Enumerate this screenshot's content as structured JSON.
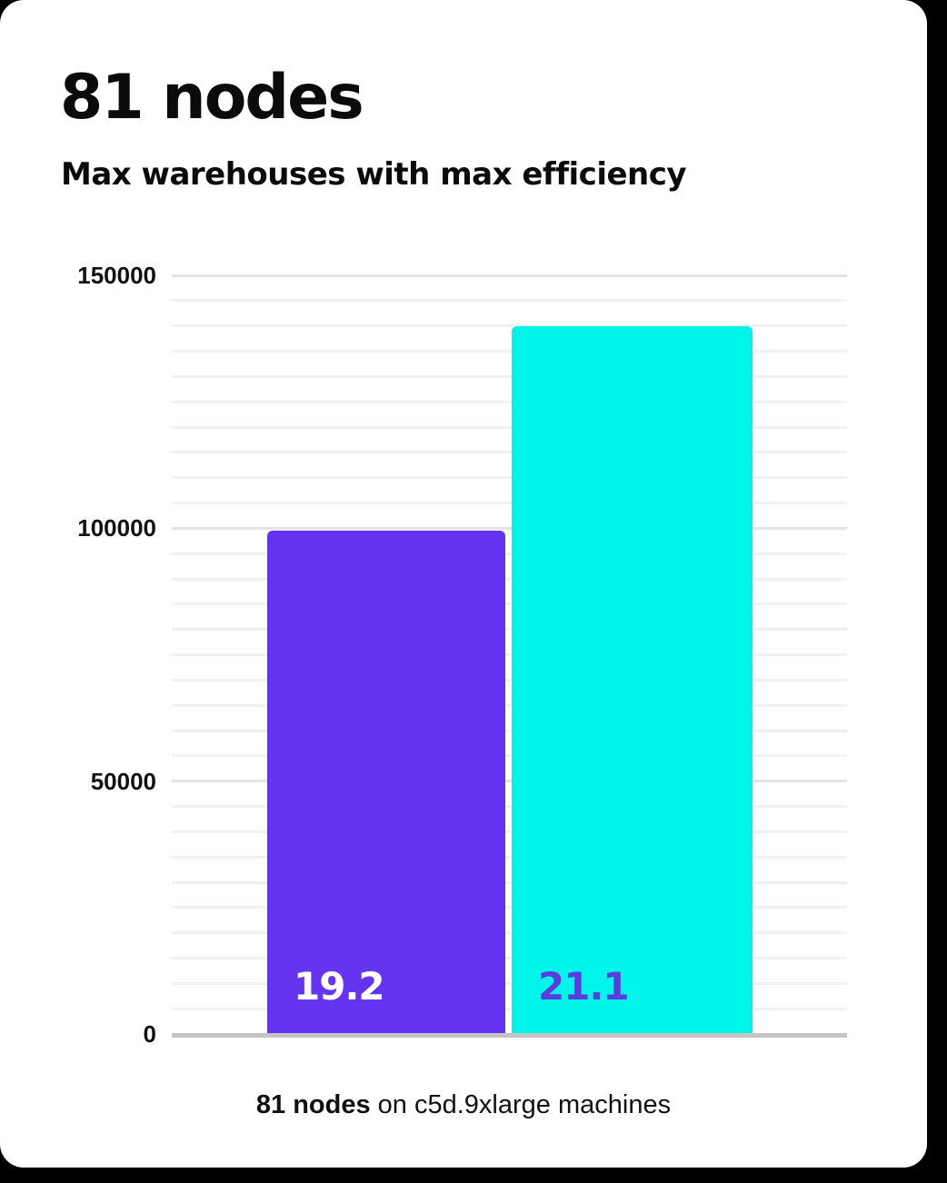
{
  "page": {
    "background_color": "#000000",
    "card_color": "#ffffff"
  },
  "header": {
    "title": "81 nodes",
    "subtitle": "Max warehouses with max efficiency"
  },
  "chart_data": {
    "type": "bar",
    "title": "81 nodes",
    "subtitle": "Max warehouses with max efficiency",
    "xlabel": "",
    "ylabel": "",
    "ylim": [
      0,
      150000
    ],
    "ytick_values": [
      0,
      50000,
      100000,
      150000
    ],
    "ytick_labels": [
      "0",
      "50000",
      "100000",
      "150000"
    ],
    "grid": {
      "enabled": true,
      "minor_step": 5000,
      "major_step": 50000,
      "minor_color": "#f1f1f1",
      "major_color": "#e4e4e4",
      "axis_color": "#c4c4c4"
    },
    "legend": null,
    "bars": [
      {
        "value": 99500,
        "bar_label": "19.2",
        "color": "#6434f1",
        "label_color": "#ffffff"
      },
      {
        "value": 140000,
        "bar_label": "21.1",
        "color": "#00f5ea",
        "label_color": "#5c3cdd"
      }
    ],
    "caption": {
      "bold": "81 nodes",
      "regular": " on c5d.9xlarge machines"
    }
  }
}
